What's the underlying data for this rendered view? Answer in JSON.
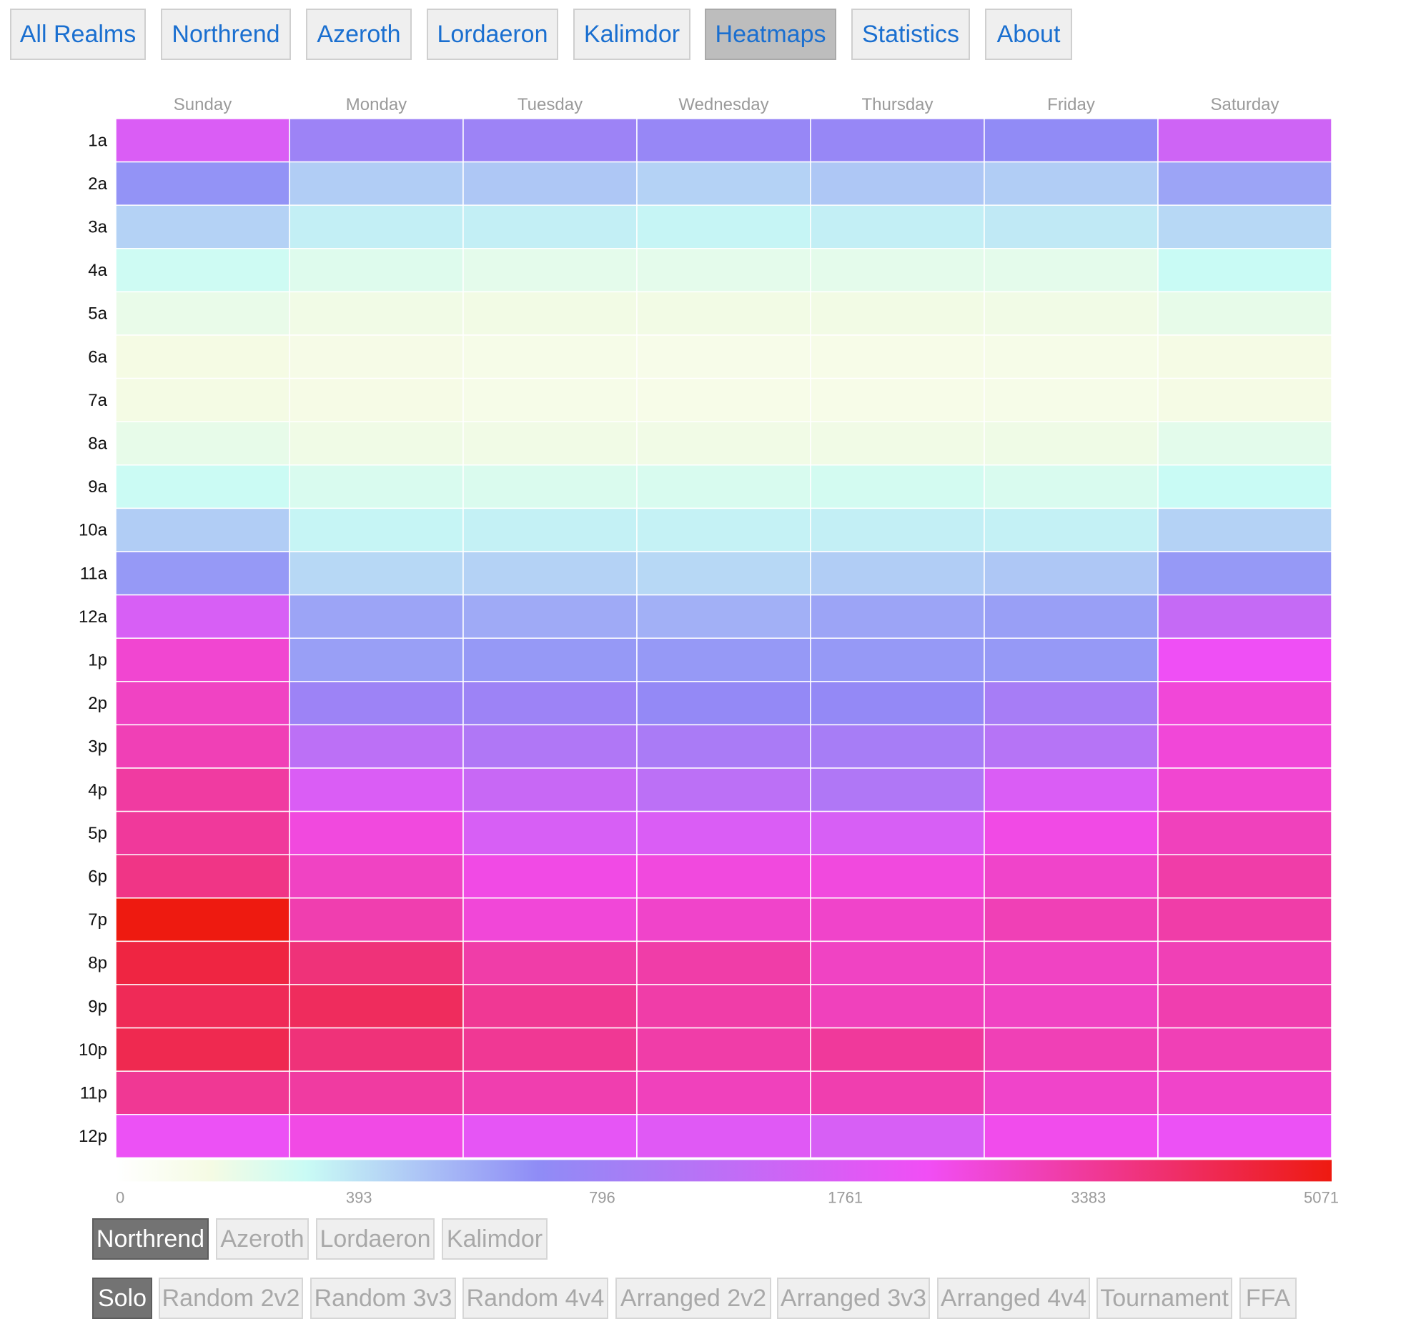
{
  "nav": {
    "items": [
      {
        "label": "All Realms",
        "active": false
      },
      {
        "label": "Northrend",
        "active": false
      },
      {
        "label": "Azeroth",
        "active": false
      },
      {
        "label": "Lordaeron",
        "active": false
      },
      {
        "label": "Kalimdor",
        "active": false
      },
      {
        "label": "Heatmaps",
        "active": true
      },
      {
        "label": "Statistics",
        "active": false
      },
      {
        "label": "About",
        "active": false
      }
    ]
  },
  "chart_data": {
    "type": "heatmap",
    "x_categories": [
      "Sunday",
      "Monday",
      "Tuesday",
      "Wednesday",
      "Thursday",
      "Friday",
      "Saturday"
    ],
    "y_categories": [
      "1a",
      "2a",
      "3a",
      "4a",
      "5a",
      "6a",
      "7a",
      "8a",
      "9a",
      "10a",
      "11a",
      "12a",
      "1p",
      "2p",
      "3p",
      "4p",
      "5p",
      "6p",
      "7p",
      "8p",
      "9p",
      "10p",
      "11p",
      "12p"
    ],
    "values": [
      [
        3000,
        2000,
        2000,
        1900,
        1900,
        1800,
        2800
      ],
      [
        1700,
        1200,
        1250,
        1150,
        1250,
        1200,
        1550
      ],
      [
        1150,
        900,
        900,
        850,
        900,
        950,
        1100
      ],
      [
        750,
        600,
        550,
        550,
        550,
        550,
        800
      ],
      [
        500,
        430,
        420,
        420,
        420,
        430,
        520
      ],
      [
        390,
        350,
        340,
        320,
        330,
        340,
        380
      ],
      [
        400,
        360,
        340,
        330,
        330,
        340,
        380
      ],
      [
        520,
        440,
        430,
        430,
        430,
        450,
        560
      ],
      [
        780,
        650,
        640,
        660,
        700,
        650,
        800
      ],
      [
        1200,
        850,
        880,
        870,
        900,
        880,
        1150
      ],
      [
        1650,
        1100,
        1150,
        1100,
        1200,
        1250,
        1650
      ],
      [
        2950,
        1550,
        1500,
        1450,
        1550,
        1600,
        2650
      ],
      [
        3650,
        1600,
        1650,
        1650,
        1650,
        1650,
        3350
      ],
      [
        3750,
        2000,
        2000,
        1850,
        1850,
        2150,
        3600
      ],
      [
        3850,
        2500,
        2300,
        2200,
        2150,
        2400,
        3600
      ],
      [
        4000,
        3000,
        2700,
        2500,
        2300,
        3000,
        3650
      ],
      [
        4050,
        3550,
        2950,
        3000,
        2950,
        3500,
        3800
      ],
      [
        4200,
        3750,
        3500,
        3550,
        3550,
        3700,
        3950
      ],
      [
        5071,
        3900,
        3600,
        3700,
        3700,
        3850,
        3950
      ],
      [
        4700,
        4300,
        3950,
        3950,
        3750,
        3750,
        3850
      ],
      [
        4550,
        4500,
        4100,
        3950,
        3800,
        3750,
        3900
      ],
      [
        4600,
        4300,
        4100,
        3950,
        4050,
        3850,
        3850
      ],
      [
        4100,
        4000,
        3900,
        3800,
        3900,
        3700,
        3700
      ],
      [
        3300,
        3500,
        3200,
        3100,
        2950,
        3450,
        3300
      ]
    ],
    "colorscale": {
      "ticks": [
        "0",
        "393",
        "796",
        "1761",
        "3383",
        "5071"
      ],
      "tick_values": [
        0,
        393,
        796,
        1761,
        3383,
        5071
      ],
      "colors": [
        "#ffffff",
        "#f5fbe4",
        "#c9fbf5",
        "#8f8cf6",
        "#f14ef5",
        "#ee1a10"
      ],
      "max": 5071
    },
    "title": "",
    "xlabel": "",
    "ylabel": ""
  },
  "realm_filter": {
    "items": [
      {
        "label": "Northrend",
        "active": true
      },
      {
        "label": "Azeroth",
        "active": false
      },
      {
        "label": "Lordaeron",
        "active": false
      },
      {
        "label": "Kalimdor",
        "active": false
      }
    ]
  },
  "bracket_filter": {
    "items": [
      {
        "label": "Solo",
        "active": true
      },
      {
        "label": "Random 2v2",
        "active": false
      },
      {
        "label": "Random 3v3",
        "active": false
      },
      {
        "label": "Random 4v4",
        "active": false
      },
      {
        "label": "Arranged 2v2",
        "active": false
      },
      {
        "label": "Arranged 3v3",
        "active": false
      },
      {
        "label": "Arranged 4v4",
        "active": false
      },
      {
        "label": "Tournament",
        "active": false
      },
      {
        "label": "FFA",
        "active": false
      }
    ]
  }
}
